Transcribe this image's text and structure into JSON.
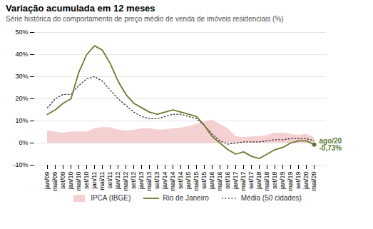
{
  "chart_data": {
    "type": "line",
    "title": "Variação acumulada em 12 meses",
    "subtitle": "Série histórica do comportamento de preço médio de venda de imóveis residenciais (%)",
    "categories": [
      "jan/09",
      "mai/09",
      "set/09",
      "jan/10",
      "mai/10",
      "set/10",
      "jan/11",
      "mai/11",
      "set/11",
      "jan/12",
      "mai/12",
      "set/12",
      "jan/13",
      "mai/13",
      "set/13",
      "jan/14",
      "mai/14",
      "set/14",
      "jan/15",
      "mai/15",
      "set/15",
      "jan/16",
      "mai/16",
      "set/16",
      "jan/17",
      "mai/17",
      "set/17",
      "jan/18",
      "mai/18",
      "set/18",
      "jan/19",
      "mai/19",
      "set/19",
      "jan/20",
      "mai/20"
    ],
    "series": [
      {
        "name": "IPCA (IBGE)",
        "type": "area",
        "color": "#f5d0d0",
        "values": [
          5.5,
          5,
          4.5,
          5,
          5.2,
          5,
          6.5,
          7,
          7,
          6,
          5.5,
          5.8,
          6.5,
          6.5,
          6,
          6,
          6.5,
          6.8,
          7.5,
          8.5,
          9.5,
          10.5,
          8.5,
          6.5,
          3,
          2.5,
          2.8,
          3,
          3.5,
          4.5,
          4.5,
          4,
          3.5,
          4,
          2.5
        ]
      },
      {
        "name": "Rio de Janeiro",
        "type": "line",
        "color": "#6b7a2e",
        "line_style": "solid",
        "values": [
          13,
          15,
          18,
          20,
          32,
          40,
          44,
          42,
          36,
          28,
          22,
          18,
          16,
          14,
          13,
          14,
          15,
          14,
          13,
          12,
          8,
          3,
          0,
          -3,
          -5,
          -4,
          -6,
          -7,
          -5,
          -3,
          -2,
          0,
          1,
          1,
          -0.73
        ]
      },
      {
        "name": "Média (50 cidades)",
        "type": "line",
        "color": "#333333",
        "line_style": "dotted",
        "values": [
          16,
          20,
          22,
          22,
          26,
          29,
          30,
          28,
          24,
          20,
          17,
          14,
          12,
          11,
          11,
          12,
          13,
          13,
          12,
          11,
          8,
          4,
          1,
          -0.5,
          0,
          0.5,
          0.5,
          0.5,
          1,
          1.5,
          1.5,
          2,
          2,
          2,
          1
        ]
      }
    ],
    "ylim": [
      -10,
      50
    ],
    "yticks": [
      {
        "value": -10,
        "label": "-10%"
      },
      {
        "value": 0,
        "label": "0%"
      },
      {
        "value": 10,
        "label": "10%"
      },
      {
        "value": 20,
        "label": "20%"
      },
      {
        "value": 30,
        "label": "30%"
      },
      {
        "value": 40,
        "label": "40%"
      },
      {
        "value": 50,
        "label": "50%"
      }
    ],
    "grid": true,
    "legend": "bottom",
    "annotations": [
      {
        "text": "ago/20\n-0,73%",
        "x": "mai/20",
        "y": -0.73,
        "color": "#5a7a3a"
      }
    ]
  }
}
